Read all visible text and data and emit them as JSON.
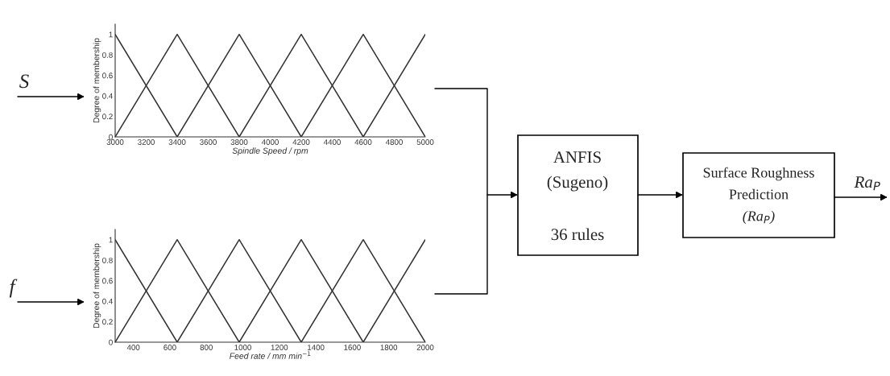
{
  "chart_data": [
    {
      "type": "line",
      "ylabel": "Degree of membership",
      "xlabel": "Spindle Speed / rpm",
      "xlim": [
        3000,
        5000
      ],
      "xticks": [
        3000,
        3200,
        3400,
        3600,
        3800,
        4000,
        4200,
        4400,
        4600,
        4800,
        5000
      ],
      "ylim": [
        0,
        1.1
      ],
      "yticks": [
        0,
        0.2,
        0.4,
        0.6,
        0.8,
        1
      ],
      "grid": false,
      "marker": "none",
      "line_style": "solid",
      "series": [
        {
          "color": "#333333",
          "x": [
            3000,
            3400
          ],
          "values": [
            1,
            0
          ]
        },
        {
          "color": "#333333",
          "x": [
            3000,
            3400,
            3800
          ],
          "values": [
            0,
            1,
            0
          ]
        },
        {
          "color": "#333333",
          "x": [
            3400,
            3800,
            4200
          ],
          "values": [
            0,
            1,
            0
          ]
        },
        {
          "color": "#333333",
          "x": [
            3800,
            4200,
            4600
          ],
          "values": [
            0,
            1,
            0
          ]
        },
        {
          "color": "#333333",
          "x": [
            4200,
            4600,
            5000
          ],
          "values": [
            0,
            1,
            0
          ]
        },
        {
          "color": "#333333",
          "x": [
            4600,
            5000
          ],
          "values": [
            0,
            1
          ]
        }
      ]
    },
    {
      "type": "line",
      "ylabel": "Degree of membership",
      "xlabel": "Feed rate / mm min$^{−1}$",
      "xlim": [
        300,
        2000
      ],
      "xticks": [
        400,
        600,
        800,
        1000,
        1200,
        1400,
        1600,
        1800,
        2000
      ],
      "ylim": [
        0,
        1.1
      ],
      "yticks": [
        0,
        0.2,
        0.4,
        0.6,
        0.8,
        1
      ],
      "grid": false,
      "marker": "none",
      "line_style": "solid",
      "series": [
        {
          "color": "#333333",
          "x": [
            300,
            640
          ],
          "values": [
            1,
            0
          ]
        },
        {
          "color": "#333333",
          "x": [
            300,
            640,
            980
          ],
          "values": [
            0,
            1,
            0
          ]
        },
        {
          "color": "#333333",
          "x": [
            640,
            980,
            1320
          ],
          "values": [
            0,
            1,
            0
          ]
        },
        {
          "color": "#333333",
          "x": [
            980,
            1320,
            1660
          ],
          "values": [
            0,
            1,
            0
          ]
        },
        {
          "color": "#333333",
          "x": [
            1320,
            1660,
            2000
          ],
          "values": [
            0,
            1,
            0
          ]
        },
        {
          "color": "#333333",
          "x": [
            1660,
            2000
          ],
          "values": [
            0,
            1
          ]
        }
      ]
    },
    {
      "type": "other",
      "annotations": [
        "S",
        "f",
        "ANFIS",
        "(Sugeno)",
        "36 rules",
        "Surface Roughness",
        "Prediction",
        "(Ra$_{P}$)",
        "Ra$_{P}$"
      ]
    }
  ]
}
